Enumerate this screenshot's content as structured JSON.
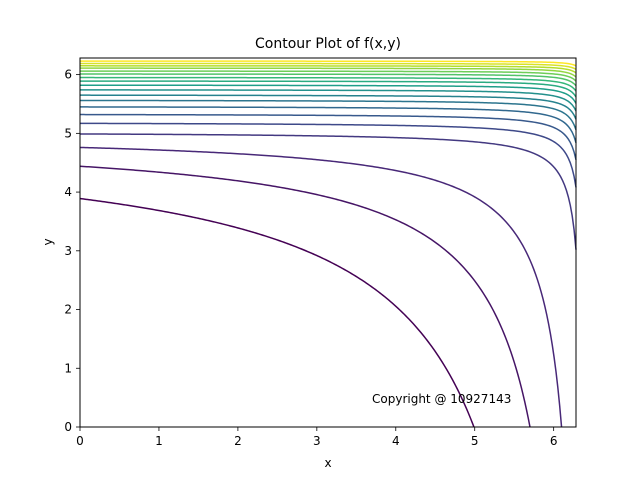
{
  "chart_data": {
    "type": "contour",
    "title": "Contour Plot of f(x,y)",
    "xlabel": "x",
    "ylabel": "y",
    "xlim": [
      0,
      6.283
    ],
    "ylim": [
      0,
      6.283
    ],
    "x_ticks": [
      {
        "value": 0,
        "label": "0"
      },
      {
        "value": 1,
        "label": "1"
      },
      {
        "value": 2,
        "label": "2"
      },
      {
        "value": 3,
        "label": "3"
      },
      {
        "value": 4,
        "label": "4"
      },
      {
        "value": 5,
        "label": "5"
      },
      {
        "value": 6,
        "label": "6"
      }
    ],
    "y_ticks": [
      {
        "value": 0,
        "label": "0"
      },
      {
        "value": 1,
        "label": "1"
      },
      {
        "value": 2,
        "label": "2"
      },
      {
        "value": 3,
        "label": "3"
      },
      {
        "value": 4,
        "label": "4"
      },
      {
        "value": 5,
        "label": "5"
      },
      {
        "value": 6,
        "label": "6"
      }
    ],
    "colormap": [
      "#440154",
      "#482878",
      "#3e4989",
      "#31688e",
      "#26828e",
      "#1f9e89",
      "#35b779",
      "#6ece58",
      "#b5de2b",
      "#fde725"
    ],
    "grid": false,
    "contours": [
      {
        "y_left": 3.89,
        "x_bottom": 4.99
      },
      {
        "y_left": 4.44,
        "x_bottom": 5.7
      },
      {
        "y_left": 4.76,
        "x_bottom": 6.1
      },
      {
        "y_left": 4.99,
        "y_right": 3.02
      },
      {
        "y_left": 5.17,
        "y_right": 4.08
      },
      {
        "y_left": 5.32,
        "y_right": 4.55
      },
      {
        "y_left": 5.45,
        "y_right": 4.84
      },
      {
        "y_left": 5.56,
        "y_right": 5.06
      },
      {
        "y_left": 5.65,
        "y_right": 5.24
      },
      {
        "y_left": 5.74,
        "y_right": 5.38
      },
      {
        "y_left": 5.82,
        "y_right": 5.51
      },
      {
        "y_left": 5.89,
        "y_right": 5.62
      },
      {
        "y_left": 5.95,
        "y_right": 5.72
      },
      {
        "y_left": 6.01,
        "y_right": 5.81
      },
      {
        "y_left": 6.06,
        "y_right": 5.89
      },
      {
        "y_left": 6.11,
        "y_right": 5.96
      },
      {
        "y_left": 6.15,
        "y_right": 6.03
      },
      {
        "y_left": 6.19,
        "y_right": 6.09
      },
      {
        "y_left": 6.23,
        "y_right": 6.15
      }
    ],
    "annotation": "Copyright @ 10927143"
  }
}
